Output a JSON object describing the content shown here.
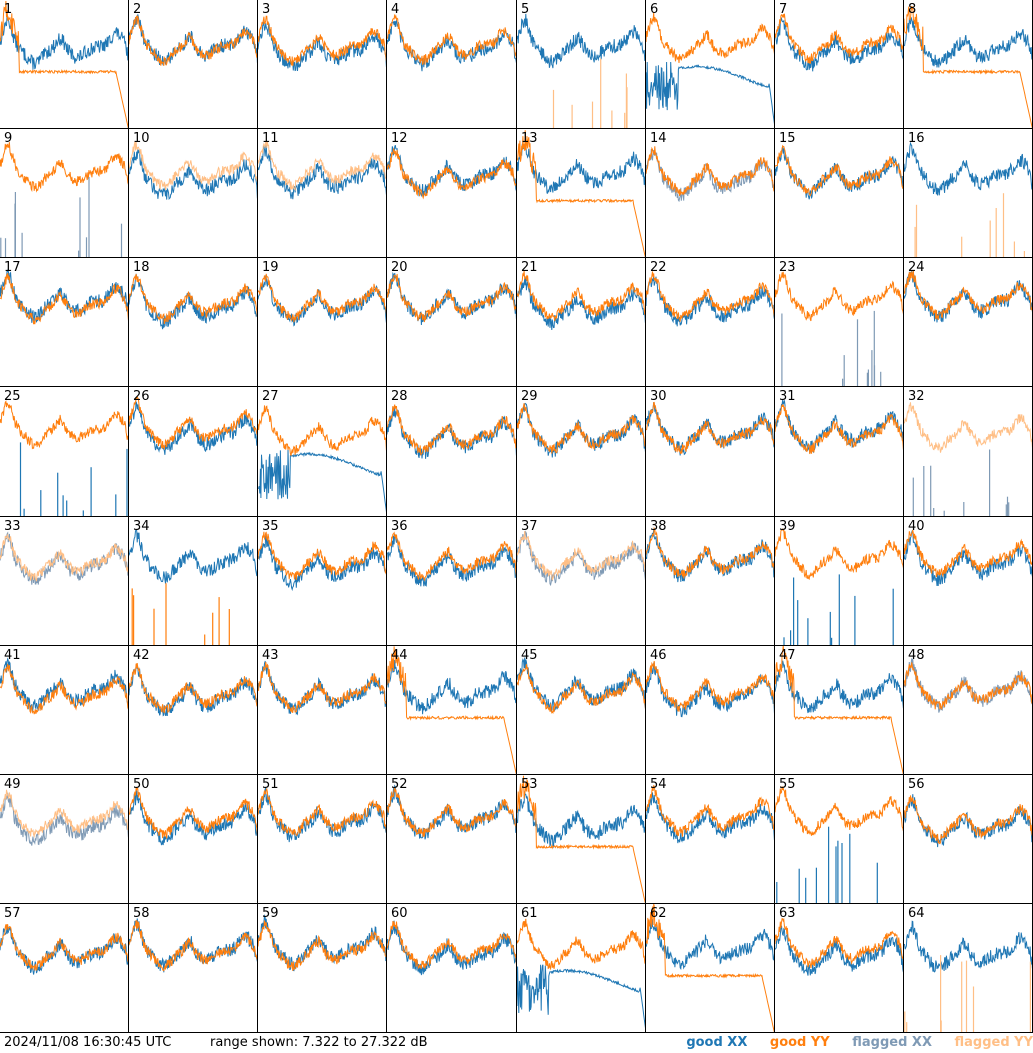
{
  "footer": {
    "timestamp": "2024/11/08 16:30:45 UTC",
    "range": "range shown: 7.322 to 27.322 dB"
  },
  "legend": [
    {
      "key": "good_xx",
      "label": "good XX",
      "color": "#1f77b4"
    },
    {
      "key": "good_yy",
      "label": "good YY",
      "color": "#ff7f0e"
    },
    {
      "key": "flagged_xx",
      "label": "flagged XX",
      "color": "#7f9ab5"
    },
    {
      "key": "flagged_yy",
      "label": "flagged YY",
      "color": "#ffbf86"
    }
  ],
  "chart_data": {
    "type": "line",
    "layout": "small-multiples grid 8x8",
    "ylim": [
      7.322,
      27.322
    ],
    "yunit": "dB",
    "series_styles": {
      "good_xx": "#1f77b4",
      "good_yy": "#ff7f0e",
      "flagged_xx": "#7f9ab5",
      "flagged_yy": "#ffbf86"
    },
    "panels": [
      {
        "id": "1",
        "xx": "good",
        "yy": "good",
        "mode": "yydrop"
      },
      {
        "id": "2",
        "xx": "good",
        "yy": "good",
        "mode": "normal"
      },
      {
        "id": "3",
        "xx": "good",
        "yy": "good",
        "mode": "normal"
      },
      {
        "id": "4",
        "xx": "good",
        "yy": "good",
        "mode": "normal"
      },
      {
        "id": "5",
        "xx": "good",
        "yy": "flagged",
        "mode": "yyspikes"
      },
      {
        "id": "6",
        "xx": "good",
        "yy": "good",
        "mode": "xxdrop"
      },
      {
        "id": "7",
        "xx": "good",
        "yy": "good",
        "mode": "normal"
      },
      {
        "id": "8",
        "xx": "good",
        "yy": "good",
        "mode": "yydrop"
      },
      {
        "id": "9",
        "xx": "flagged",
        "yy": "good",
        "mode": "xxspikes"
      },
      {
        "id": "10",
        "xx": "good",
        "yy": "flagged",
        "mode": "normal"
      },
      {
        "id": "11",
        "xx": "good",
        "yy": "flagged",
        "mode": "normal"
      },
      {
        "id": "12",
        "xx": "good",
        "yy": "good",
        "mode": "normal"
      },
      {
        "id": "13",
        "xx": "good",
        "yy": "good",
        "mode": "yydrop"
      },
      {
        "id": "14",
        "xx": "flagged",
        "yy": "good",
        "mode": "normal"
      },
      {
        "id": "15",
        "xx": "good",
        "yy": "good",
        "mode": "normal"
      },
      {
        "id": "16",
        "xx": "good",
        "yy": "flagged",
        "mode": "yyspikes"
      },
      {
        "id": "17",
        "xx": "good",
        "yy": "good",
        "mode": "normal"
      },
      {
        "id": "18",
        "xx": "good",
        "yy": "good",
        "mode": "normal"
      },
      {
        "id": "19",
        "xx": "good",
        "yy": "good",
        "mode": "normal"
      },
      {
        "id": "20",
        "xx": "good",
        "yy": "good",
        "mode": "normal"
      },
      {
        "id": "21",
        "xx": "good",
        "yy": "good",
        "mode": "normal"
      },
      {
        "id": "22",
        "xx": "good",
        "yy": "good",
        "mode": "normal"
      },
      {
        "id": "23",
        "xx": "flagged",
        "yy": "good",
        "mode": "xxspikes"
      },
      {
        "id": "24",
        "xx": "good",
        "yy": "good",
        "mode": "normal"
      },
      {
        "id": "25",
        "xx": "good",
        "yy": "good",
        "mode": "xxspikes"
      },
      {
        "id": "26",
        "xx": "good",
        "yy": "good",
        "mode": "normal"
      },
      {
        "id": "27",
        "xx": "good",
        "yy": "good",
        "mode": "xxdrop"
      },
      {
        "id": "28",
        "xx": "good",
        "yy": "good",
        "mode": "normal"
      },
      {
        "id": "29",
        "xx": "good",
        "yy": "good",
        "mode": "normal"
      },
      {
        "id": "30",
        "xx": "good",
        "yy": "good",
        "mode": "normal"
      },
      {
        "id": "31",
        "xx": "good",
        "yy": "good",
        "mode": "normal"
      },
      {
        "id": "32",
        "xx": "flagged",
        "yy": "flagged",
        "mode": "xxspikes"
      },
      {
        "id": "33",
        "xx": "flagged",
        "yy": "flagged",
        "mode": "normal"
      },
      {
        "id": "34",
        "xx": "good",
        "yy": "good",
        "mode": "yyspikes"
      },
      {
        "id": "35",
        "xx": "good",
        "yy": "good",
        "mode": "normal"
      },
      {
        "id": "36",
        "xx": "good",
        "yy": "good",
        "mode": "normal"
      },
      {
        "id": "37",
        "xx": "flagged",
        "yy": "flagged",
        "mode": "normal"
      },
      {
        "id": "38",
        "xx": "good",
        "yy": "good",
        "mode": "normal"
      },
      {
        "id": "39",
        "xx": "good",
        "yy": "good",
        "mode": "xxspikes"
      },
      {
        "id": "40",
        "xx": "good",
        "yy": "good",
        "mode": "normal"
      },
      {
        "id": "41",
        "xx": "good",
        "yy": "good",
        "mode": "normal"
      },
      {
        "id": "42",
        "xx": "good",
        "yy": "good",
        "mode": "normal"
      },
      {
        "id": "43",
        "xx": "good",
        "yy": "good",
        "mode": "normal"
      },
      {
        "id": "44",
        "xx": "good",
        "yy": "good",
        "mode": "yydrop"
      },
      {
        "id": "45",
        "xx": "good",
        "yy": "good",
        "mode": "normal"
      },
      {
        "id": "46",
        "xx": "good",
        "yy": "good",
        "mode": "normal"
      },
      {
        "id": "47",
        "xx": "good",
        "yy": "good",
        "mode": "yydrop"
      },
      {
        "id": "48",
        "xx": "flagged",
        "yy": "good",
        "mode": "normal"
      },
      {
        "id": "49",
        "xx": "flagged",
        "yy": "flagged",
        "mode": "normal"
      },
      {
        "id": "50",
        "xx": "good",
        "yy": "good",
        "mode": "normal"
      },
      {
        "id": "51",
        "xx": "good",
        "yy": "good",
        "mode": "normal"
      },
      {
        "id": "52",
        "xx": "good",
        "yy": "good",
        "mode": "normal"
      },
      {
        "id": "53",
        "xx": "good",
        "yy": "good",
        "mode": "yydrop"
      },
      {
        "id": "54",
        "xx": "good",
        "yy": "good",
        "mode": "normal"
      },
      {
        "id": "55",
        "xx": "good",
        "yy": "good",
        "mode": "xxspikes"
      },
      {
        "id": "56",
        "xx": "good",
        "yy": "good",
        "mode": "normal"
      },
      {
        "id": "57",
        "xx": "good",
        "yy": "good",
        "mode": "normal"
      },
      {
        "id": "58",
        "xx": "good",
        "yy": "good",
        "mode": "normal"
      },
      {
        "id": "59",
        "xx": "good",
        "yy": "good",
        "mode": "normal"
      },
      {
        "id": "60",
        "xx": "good",
        "yy": "good",
        "mode": "normal"
      },
      {
        "id": "61",
        "xx": "good",
        "yy": "good",
        "mode": "xxdrop"
      },
      {
        "id": "62",
        "xx": "good",
        "yy": "good",
        "mode": "yydrop"
      },
      {
        "id": "63",
        "xx": "good",
        "yy": "good",
        "mode": "normal"
      },
      {
        "id": "64",
        "xx": "good",
        "yy": "flagged",
        "mode": "yyspikes"
      }
    ]
  }
}
